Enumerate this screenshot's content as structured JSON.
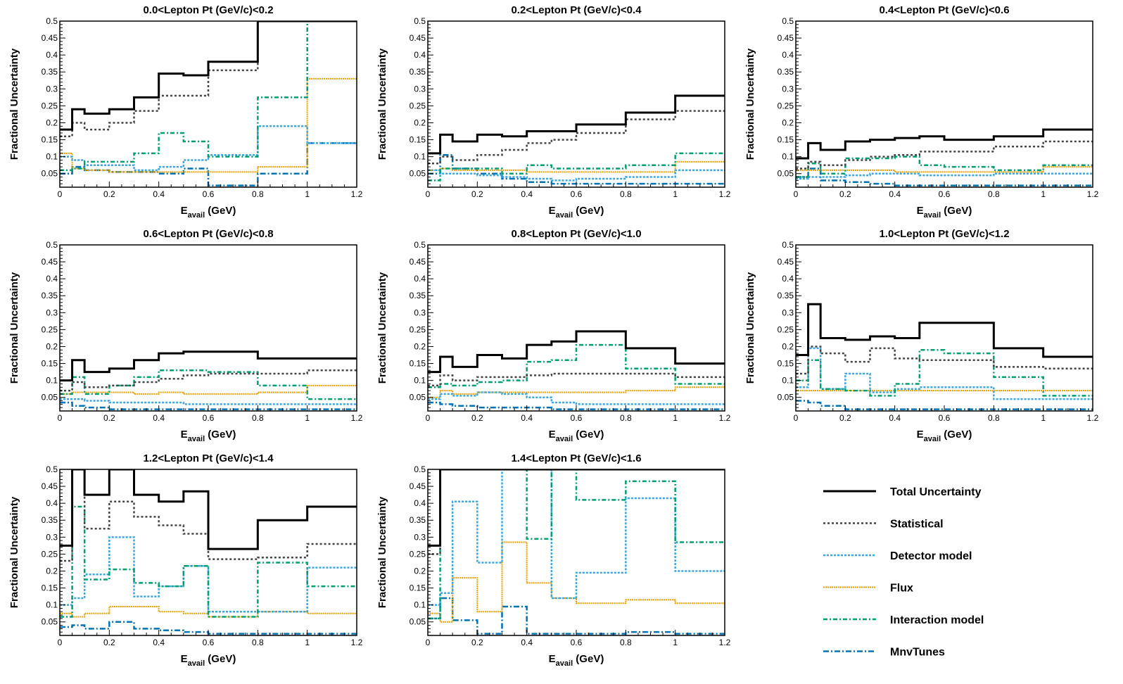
{
  "figure": {
    "xlabel_main": "E",
    "xlabel_sub": "avail",
    "xlabel_unit": " (GeV)",
    "ylabel": "Fractional Uncertainty"
  },
  "styles": {
    "Total Uncertainty": {
      "color": "#000000",
      "dash": "",
      "width": 3
    },
    "Statistical": {
      "color": "#444444",
      "dash": "3,3",
      "width": 2.5
    },
    "Detector model": {
      "color": "#3aa6df",
      "dash": "3,2",
      "width": 2.5
    },
    "Flux": {
      "color": "#e69f00",
      "dash": "2,1",
      "width": 2
    },
    "Interaction model": {
      "color": "#009e73",
      "dash": "6,3,2,3",
      "width": 2.5
    },
    "MnvTunes": {
      "color": "#0072b2",
      "dash": "8,3,2,3",
      "width": 2.5
    }
  },
  "legend": {
    "entries": [
      "Total Uncertainty",
      "Statistical",
      "Detector model",
      "Flux",
      "Interaction model",
      "MnvTunes"
    ]
  },
  "chart_data": [
    {
      "type": "line",
      "title": "0.0<Lepton Pt (GeV/c)<0.2",
      "xlabel": "Eavail (GeV)",
      "ylabel": "Fractional Uncertainty",
      "xlim": [
        0,
        1.2
      ],
      "ylim": [
        0.01,
        0.5
      ],
      "x_edges": [
        0,
        0.05,
        0.1,
        0.2,
        0.3,
        0.4,
        0.5,
        0.6,
        0.8,
        1.0,
        1.2
      ],
      "xticks": [
        "0",
        "0.2",
        "0.4",
        "0.6",
        "0.8",
        "1",
        "1.2"
      ],
      "yticks": [
        "0.05",
        "0.1",
        "0.15",
        "0.2",
        "0.25",
        "0.3",
        "0.35",
        "0.4",
        "0.45",
        "0.5"
      ],
      "series": [
        {
          "name": "Total Uncertainty",
          "values": [
            0.18,
            0.24,
            0.227,
            0.24,
            0.275,
            0.345,
            0.34,
            0.38,
            0.5,
            0.5
          ]
        },
        {
          "name": "Statistical",
          "values": [
            0.16,
            0.2,
            0.18,
            0.2,
            0.235,
            0.28,
            0.28,
            0.355,
            0.5,
            0.5
          ]
        },
        {
          "name": "Detector model",
          "values": [
            0.1,
            0.09,
            0.075,
            0.075,
            0.06,
            0.07,
            0.09,
            0.105,
            0.19,
            0.14
          ]
        },
        {
          "name": "Flux",
          "values": [
            0.11,
            0.065,
            0.06,
            0.055,
            0.055,
            0.055,
            0.055,
            0.055,
            0.07,
            0.33
          ]
        },
        {
          "name": "Interaction model",
          "values": [
            0.06,
            0.065,
            0.085,
            0.085,
            0.11,
            0.17,
            0.145,
            0.1,
            0.275,
            0.5
          ]
        },
        {
          "name": "MnvTunes",
          "values": [
            0.05,
            0.07,
            0.06,
            0.055,
            0.055,
            0.05,
            0.065,
            0.015,
            0.05,
            0.14
          ]
        }
      ]
    },
    {
      "type": "line",
      "title": "0.2<Lepton Pt (GeV/c)<0.4",
      "xlabel": "Eavail (GeV)",
      "ylabel": "Fractional Uncertainty",
      "xlim": [
        0,
        1.2
      ],
      "ylim": [
        0.01,
        0.5
      ],
      "x_edges": [
        0,
        0.05,
        0.1,
        0.2,
        0.3,
        0.4,
        0.5,
        0.6,
        0.8,
        1.0,
        1.2
      ],
      "xticks": [
        "0",
        "0.2",
        "0.4",
        "0.6",
        "0.8",
        "1",
        "1.2"
      ],
      "yticks": [
        "0.05",
        "0.1",
        "0.15",
        "0.2",
        "0.25",
        "0.3",
        "0.35",
        "0.4",
        "0.45",
        "0.5"
      ],
      "series": [
        {
          "name": "Total Uncertainty",
          "values": [
            0.11,
            0.165,
            0.145,
            0.165,
            0.16,
            0.175,
            0.175,
            0.195,
            0.23,
            0.28
          ]
        },
        {
          "name": "Statistical",
          "values": [
            0.08,
            0.1,
            0.09,
            0.105,
            0.12,
            0.14,
            0.15,
            0.17,
            0.21,
            0.235
          ]
        },
        {
          "name": "Detector model",
          "values": [
            0.06,
            0.05,
            0.05,
            0.045,
            0.04,
            0.035,
            0.03,
            0.035,
            0.04,
            0.06
          ]
        },
        {
          "name": "Flux",
          "values": [
            0.06,
            0.065,
            0.06,
            0.06,
            0.06,
            0.055,
            0.055,
            0.055,
            0.055,
            0.085
          ]
        },
        {
          "name": "Interaction model",
          "values": [
            0.03,
            0.065,
            0.065,
            0.065,
            0.05,
            0.075,
            0.065,
            0.065,
            0.075,
            0.11
          ]
        },
        {
          "name": "MnvTunes",
          "values": [
            0.05,
            0.105,
            0.065,
            0.05,
            0.035,
            0.025,
            0.02,
            0.02,
            0.02,
            0.02
          ]
        }
      ]
    },
    {
      "type": "line",
      "title": "0.4<Lepton Pt (GeV/c)<0.6",
      "xlabel": "Eavail (GeV)",
      "ylabel": "Fractional Uncertainty",
      "xlim": [
        0,
        1.2
      ],
      "ylim": [
        0.01,
        0.5
      ],
      "x_edges": [
        0,
        0.05,
        0.1,
        0.2,
        0.3,
        0.4,
        0.5,
        0.6,
        0.8,
        1.0,
        1.2
      ],
      "xticks": [
        "0",
        "0.2",
        "0.4",
        "0.6",
        "0.8",
        "1",
        "1.2"
      ],
      "yticks": [
        "0.05",
        "0.1",
        "0.15",
        "0.2",
        "0.25",
        "0.3",
        "0.35",
        "0.4",
        "0.45",
        "0.5"
      ],
      "series": [
        {
          "name": "Total Uncertainty",
          "values": [
            0.095,
            0.14,
            0.12,
            0.145,
            0.15,
            0.155,
            0.16,
            0.15,
            0.16,
            0.18
          ]
        },
        {
          "name": "Statistical",
          "values": [
            0.065,
            0.085,
            0.075,
            0.09,
            0.1,
            0.105,
            0.115,
            0.115,
            0.13,
            0.145
          ]
        },
        {
          "name": "Detector model",
          "values": [
            0.035,
            0.04,
            0.04,
            0.045,
            0.05,
            0.05,
            0.045,
            0.045,
            0.05,
            0.05
          ]
        },
        {
          "name": "Flux",
          "values": [
            0.06,
            0.06,
            0.06,
            0.06,
            0.06,
            0.055,
            0.055,
            0.055,
            0.055,
            0.07
          ]
        },
        {
          "name": "Interaction model",
          "values": [
            0.04,
            0.08,
            0.05,
            0.095,
            0.095,
            0.1,
            0.075,
            0.07,
            0.06,
            0.075
          ]
        },
        {
          "name": "MnvTunes",
          "values": [
            0.04,
            0.065,
            0.03,
            0.025,
            0.02,
            0.015,
            0.015,
            0.015,
            0.015,
            0.015
          ]
        }
      ]
    },
    {
      "type": "line",
      "title": "0.6<Lepton Pt (GeV/c)<0.8",
      "xlabel": "Eavail (GeV)",
      "ylabel": "Fractional Uncertainty",
      "xlim": [
        0,
        1.2
      ],
      "ylim": [
        0.01,
        0.5
      ],
      "x_edges": [
        0,
        0.05,
        0.1,
        0.2,
        0.3,
        0.4,
        0.5,
        0.6,
        0.8,
        1.0,
        1.2
      ],
      "xticks": [
        "0",
        "0.2",
        "0.4",
        "0.6",
        "0.8",
        "1",
        "1.2"
      ],
      "yticks": [
        "0.05",
        "0.1",
        "0.15",
        "0.2",
        "0.25",
        "0.3",
        "0.35",
        "0.4",
        "0.45",
        "0.5"
      ],
      "series": [
        {
          "name": "Total Uncertainty",
          "values": [
            0.1,
            0.16,
            0.125,
            0.135,
            0.16,
            0.18,
            0.185,
            0.185,
            0.165,
            0.165
          ]
        },
        {
          "name": "Statistical",
          "values": [
            0.07,
            0.095,
            0.08,
            0.085,
            0.095,
            0.105,
            0.115,
            0.12,
            0.12,
            0.13
          ]
        },
        {
          "name": "Detector model",
          "values": [
            0.045,
            0.045,
            0.04,
            0.035,
            0.035,
            0.035,
            0.03,
            0.03,
            0.03,
            0.03
          ]
        },
        {
          "name": "Flux",
          "values": [
            0.06,
            0.065,
            0.065,
            0.065,
            0.06,
            0.065,
            0.06,
            0.06,
            0.065,
            0.085
          ]
        },
        {
          "name": "Interaction model",
          "values": [
            0.06,
            0.11,
            0.06,
            0.085,
            0.11,
            0.13,
            0.13,
            0.125,
            0.085,
            0.045
          ]
        },
        {
          "name": "MnvTunes",
          "values": [
            0.035,
            0.025,
            0.02,
            0.015,
            0.015,
            0.015,
            0.015,
            0.015,
            0.015,
            0.015
          ]
        }
      ]
    },
    {
      "type": "line",
      "title": "0.8<Lepton Pt (GeV/c)<1.0",
      "xlabel": "Eavail (GeV)",
      "ylabel": "Fractional Uncertainty",
      "xlim": [
        0,
        1.2
      ],
      "ylim": [
        0.01,
        0.5
      ],
      "x_edges": [
        0,
        0.05,
        0.1,
        0.2,
        0.3,
        0.4,
        0.5,
        0.6,
        0.8,
        1.0,
        1.2
      ],
      "xticks": [
        "0",
        "0.2",
        "0.4",
        "0.6",
        "0.8",
        "1",
        "1.2"
      ],
      "yticks": [
        "0.05",
        "0.1",
        "0.15",
        "0.2",
        "0.25",
        "0.3",
        "0.35",
        "0.4",
        "0.45",
        "0.5"
      ],
      "series": [
        {
          "name": "Total Uncertainty",
          "values": [
            0.125,
            0.17,
            0.14,
            0.175,
            0.165,
            0.205,
            0.215,
            0.245,
            0.195,
            0.15
          ]
        },
        {
          "name": "Statistical",
          "values": [
            0.085,
            0.115,
            0.1,
            0.11,
            0.11,
            0.115,
            0.12,
            0.12,
            0.12,
            0.11
          ]
        },
        {
          "name": "Detector model",
          "values": [
            0.045,
            0.06,
            0.055,
            0.065,
            0.06,
            0.05,
            0.035,
            0.03,
            0.03,
            0.03
          ]
        },
        {
          "name": "Flux",
          "values": [
            0.05,
            0.07,
            0.06,
            0.065,
            0.065,
            0.065,
            0.065,
            0.065,
            0.07,
            0.08
          ]
        },
        {
          "name": "Interaction model",
          "values": [
            0.08,
            0.09,
            0.085,
            0.095,
            0.1,
            0.155,
            0.16,
            0.205,
            0.135,
            0.09
          ]
        },
        {
          "name": "MnvTunes",
          "values": [
            0.035,
            0.03,
            0.025,
            0.02,
            0.02,
            0.02,
            0.015,
            0.015,
            0.015,
            0.015
          ]
        }
      ]
    },
    {
      "type": "line",
      "title": "1.0<Lepton Pt (GeV/c)<1.2",
      "xlabel": "Eavail (GeV)",
      "ylabel": "Fractional Uncertainty",
      "xlim": [
        0,
        1.2
      ],
      "ylim": [
        0.01,
        0.5
      ],
      "x_edges": [
        0,
        0.05,
        0.1,
        0.2,
        0.3,
        0.4,
        0.5,
        0.6,
        0.8,
        1.0,
        1.2
      ],
      "xticks": [
        "0",
        "0.2",
        "0.4",
        "0.6",
        "0.8",
        "1",
        "1.2"
      ],
      "yticks": [
        "0.05",
        "0.1",
        "0.15",
        "0.2",
        "0.25",
        "0.3",
        "0.35",
        "0.4",
        "0.45",
        "0.5"
      ],
      "series": [
        {
          "name": "Total Uncertainty",
          "values": [
            0.175,
            0.325,
            0.225,
            0.22,
            0.23,
            0.225,
            0.27,
            0.27,
            0.195,
            0.17
          ]
        },
        {
          "name": "Statistical",
          "values": [
            0.12,
            0.2,
            0.18,
            0.155,
            0.195,
            0.165,
            0.16,
            0.16,
            0.14,
            0.135
          ]
        },
        {
          "name": "Detector model",
          "values": [
            0.08,
            0.195,
            0.075,
            0.12,
            0.065,
            0.075,
            0.08,
            0.08,
            0.045,
            0.045
          ]
        },
        {
          "name": "Flux",
          "values": [
            0.07,
            0.07,
            0.07,
            0.07,
            0.07,
            0.07,
            0.07,
            0.07,
            0.07,
            0.07
          ]
        },
        {
          "name": "Interaction model",
          "values": [
            0.1,
            0.16,
            0.075,
            0.07,
            0.055,
            0.09,
            0.19,
            0.18,
            0.11,
            0.055
          ]
        },
        {
          "name": "MnvTunes",
          "values": [
            0.04,
            0.035,
            0.025,
            0.015,
            0.015,
            0.015,
            0.015,
            0.015,
            0.015,
            0.015
          ]
        }
      ]
    },
    {
      "type": "line",
      "title": "1.2<Lepton Pt (GeV/c)<1.4",
      "xlabel": "Eavail (GeV)",
      "ylabel": "Fractional Uncertainty",
      "xlim": [
        0,
        1.2
      ],
      "ylim": [
        0.01,
        0.5
      ],
      "x_edges": [
        0,
        0.05,
        0.1,
        0.2,
        0.3,
        0.4,
        0.5,
        0.6,
        0.8,
        1.0,
        1.2
      ],
      "xticks": [
        "0",
        "0.2",
        "0.4",
        "0.6",
        "0.8",
        "1",
        "1.2"
      ],
      "yticks": [
        "0.05",
        "0.1",
        "0.15",
        "0.2",
        "0.25",
        "0.3",
        "0.35",
        "0.4",
        "0.45",
        "0.5"
      ],
      "series": [
        {
          "name": "Total Uncertainty",
          "values": [
            0.275,
            0.5,
            0.425,
            0.5,
            0.425,
            0.405,
            0.435,
            0.265,
            0.35,
            0.39
          ]
        },
        {
          "name": "Statistical",
          "values": [
            0.23,
            0.5,
            0.325,
            0.405,
            0.36,
            0.335,
            0.31,
            0.235,
            0.24,
            0.28
          ]
        },
        {
          "name": "Detector model",
          "values": [
            0.1,
            0.12,
            0.19,
            0.3,
            0.125,
            0.155,
            0.215,
            0.08,
            0.08,
            0.21
          ]
        },
        {
          "name": "Flux",
          "values": [
            0.075,
            0.065,
            0.075,
            0.095,
            0.095,
            0.08,
            0.075,
            0.065,
            0.08,
            0.075
          ]
        },
        {
          "name": "Interaction model",
          "values": [
            0.065,
            0.39,
            0.175,
            0.205,
            0.165,
            0.155,
            0.215,
            0.065,
            0.225,
            0.155
          ]
        },
        {
          "name": "MnvTunes",
          "values": [
            0.035,
            0.04,
            0.03,
            0.05,
            0.03,
            0.025,
            0.02,
            0.015,
            0.015,
            0.015
          ]
        }
      ]
    },
    {
      "type": "line",
      "title": "1.4<Lepton Pt (GeV/c)<1.6",
      "xlabel": "Eavail (GeV)",
      "ylabel": "Fractional Uncertainty",
      "xlim": [
        0,
        1.2
      ],
      "ylim": [
        0.01,
        0.5
      ],
      "x_edges": [
        0,
        0.05,
        0.1,
        0.2,
        0.3,
        0.4,
        0.5,
        0.6,
        0.8,
        1.0,
        1.2
      ],
      "xticks": [
        "0",
        "0.2",
        "0.4",
        "0.6",
        "0.8",
        "1",
        "1.2"
      ],
      "yticks": [
        "0.05",
        "0.1",
        "0.15",
        "0.2",
        "0.25",
        "0.3",
        "0.35",
        "0.4",
        "0.45",
        "0.5"
      ],
      "series": [
        {
          "name": "Total Uncertainty",
          "values": [
            0.275,
            0.5,
            0.5,
            0.5,
            0.5,
            0.5,
            0.5,
            0.5,
            0.5,
            0.5
          ]
        },
        {
          "name": "Statistical",
          "values": [
            0.25,
            0.5,
            0.5,
            0.5,
            0.5,
            0.5,
            0.5,
            0.5,
            0.5,
            0.5
          ]
        },
        {
          "name": "Detector model",
          "values": [
            0.1,
            0.135,
            0.405,
            0.225,
            0.5,
            0.5,
            0.12,
            0.195,
            0.415,
            0.2
          ]
        },
        {
          "name": "Flux",
          "values": [
            0.075,
            0.05,
            0.18,
            0.08,
            0.285,
            0.165,
            0.12,
            0.105,
            0.115,
            0.105
          ]
        },
        {
          "name": "Interaction model",
          "values": [
            0.06,
            0.5,
            0.5,
            0.5,
            0.5,
            0.295,
            0.5,
            0.41,
            0.465,
            0.285
          ]
        },
        {
          "name": "MnvTunes",
          "values": [
            0.06,
            0.12,
            0.055,
            0.015,
            0.095,
            0.015,
            0.015,
            0.015,
            0.02,
            0.015
          ]
        }
      ]
    }
  ]
}
